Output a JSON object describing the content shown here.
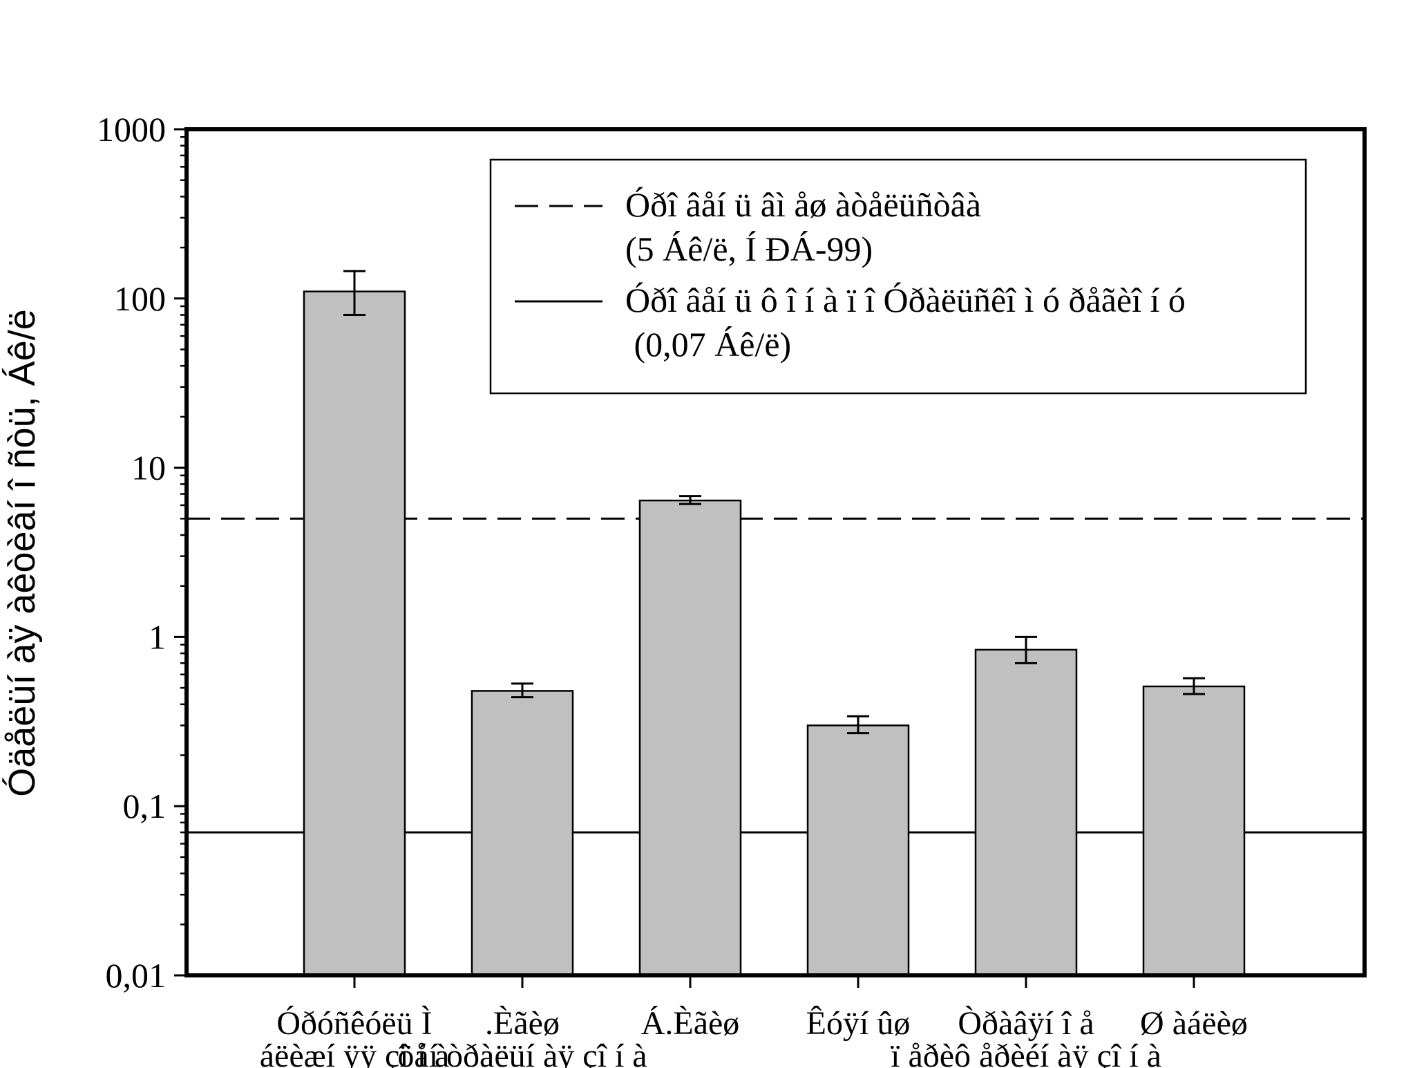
{
  "chart_data": {
    "type": "bar",
    "scale": "log",
    "ylim": [
      0.01,
      1000
    ],
    "ylabel": "Óäåëüí àÿ àêòèâí î ñòü, Áê/ë",
    "xlabel": "",
    "y_ticks": [
      {
        "value": 1000,
        "label": "1000"
      },
      {
        "value": 100,
        "label": "100"
      },
      {
        "value": 10,
        "label": "10"
      },
      {
        "value": 1,
        "label": "1"
      },
      {
        "value": 0.1,
        "label": "0,1"
      },
      {
        "value": 0.01,
        "label": "0,01"
      }
    ],
    "categories": [
      {
        "lines": [
          "Óðóñêóëü Ì",
          "áëèæí ÿÿ çî í à"
        ]
      },
      {
        "lines": [
          ".Èãèø",
          "öåí òðàëüí àÿ çî í à"
        ]
      },
      {
        "lines": [
          "Á.Èãèø",
          ""
        ]
      },
      {
        "lines": [
          "Êóÿí ûø",
          ""
        ]
      },
      {
        "lines": [
          "Òðàâÿí î å",
          "ï åðèô åðèéí àÿ çî í à"
        ]
      },
      {
        "lines": [
          "Ø àáëèø",
          ""
        ]
      }
    ],
    "values": [
      110,
      0.48,
      6.4,
      0.3,
      0.84,
      0.51
    ],
    "errors": [
      {
        "low": 80,
        "high": 145
      },
      {
        "low": 0.44,
        "high": 0.53
      },
      {
        "low": 6.1,
        "high": 6.8
      },
      {
        "low": 0.27,
        "high": 0.34
      },
      {
        "low": 0.7,
        "high": 1.0
      },
      {
        "low": 0.46,
        "high": 0.57
      }
    ],
    "reference_lines": [
      {
        "value": 5,
        "style": "dashed",
        "label_lines": [
          "Óðî âåí ü âì åø àòåëüñòâà",
          "(5 Áê/ë, Í ÐÁ-99)"
        ]
      },
      {
        "value": 0.07,
        "style": "solid",
        "label_lines": [
          "Óðî âåí ü ô î í à ï î  Óðàëüñêî ì ó ðåãèî í ó",
          " (0,07 Áê/ë)"
        ]
      }
    ],
    "colors": {
      "bar_fill": "#c0c0c0",
      "bar_stroke": "#000000",
      "axis": "#000000"
    },
    "legend_position": "top-right",
    "grid": false
  }
}
